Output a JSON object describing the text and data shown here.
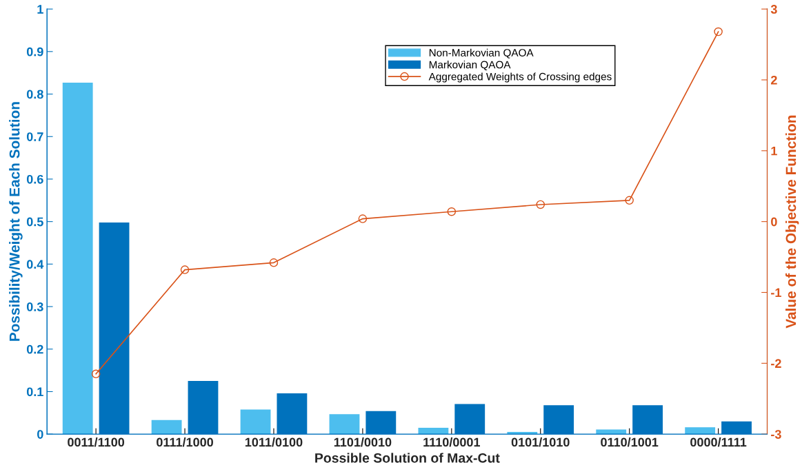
{
  "chart_data": {
    "type": "bar",
    "xlabel": "Possible Solution of Max-Cut",
    "ylabel": "Possibility/Weight of Each Solution",
    "y2label": "Value of the Objective Function",
    "categories": [
      "0011/1100",
      "0111/1000",
      "1011/0100",
      "1101/0010",
      "1110/0001",
      "0101/1010",
      "0110/1001",
      "0000/1111"
    ],
    "series": [
      {
        "name": "Non-Markovian QAOA",
        "color": "#4dbeee",
        "values": [
          0.827,
          0.033,
          0.058,
          0.047,
          0.015,
          0.005,
          0.011,
          0.016
        ]
      },
      {
        "name": "Markovian QAOA",
        "color": "#0072bd",
        "values": [
          0.498,
          0.125,
          0.096,
          0.054,
          0.071,
          0.068,
          0.068,
          0.03
        ]
      },
      {
        "name": "Aggregated Weights of Crossing edges",
        "type": "line",
        "axis": "y2",
        "color": "#d95319",
        "marker": "circle",
        "values": [
          -2.15,
          -0.68,
          -0.58,
          0.04,
          0.14,
          0.24,
          0.3,
          2.68
        ]
      }
    ],
    "ylim": [
      0,
      1
    ],
    "yticks": [
      0,
      0.1,
      0.2,
      0.3,
      0.4,
      0.5,
      0.6,
      0.7,
      0.8,
      0.9,
      1
    ],
    "y2lim": [
      -3,
      3
    ],
    "y2ticks": [
      -3,
      -2,
      -1,
      0,
      1,
      2,
      3
    ],
    "grid": false,
    "legend": "top right"
  }
}
